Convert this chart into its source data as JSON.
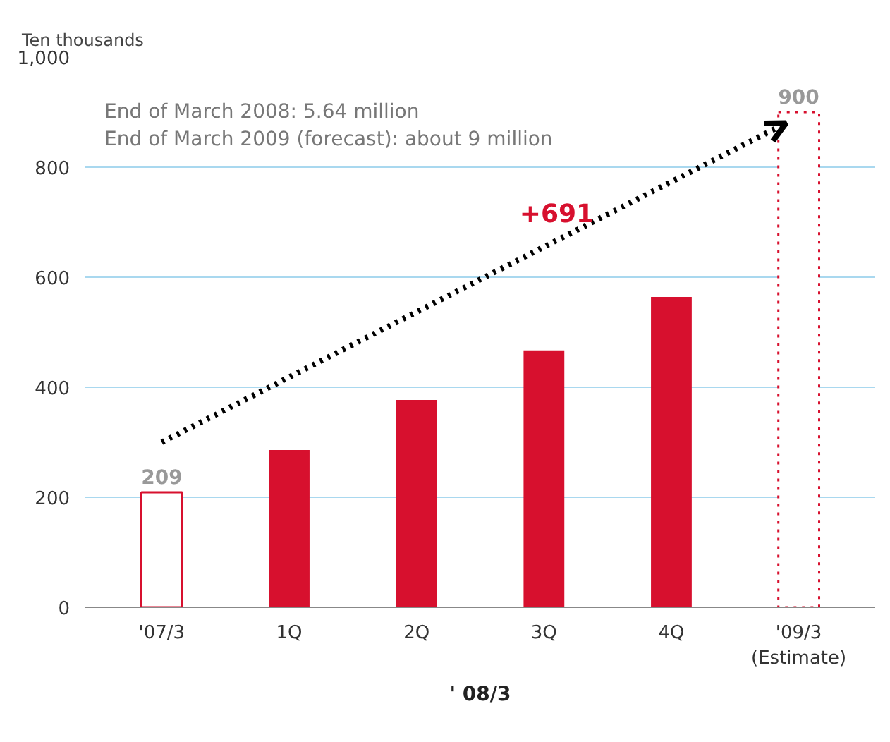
{
  "chart_data": {
    "type": "bar",
    "ylabel": "Ten thousands",
    "categories": [
      "'07/3",
      "1Q",
      "2Q",
      "3Q",
      "4Q",
      "'09/3\n(Estimate)"
    ],
    "series": [
      {
        "color": "#d7102e",
        "values": [
          209,
          null,
          null,
          null,
          null,
          null
        ],
        "line_style": "solid",
        "value_labels": [
          "209",
          null,
          null,
          null,
          null,
          null
        ]
      },
      {
        "color": "#d7102e",
        "values": [
          null,
          286,
          377,
          467,
          564,
          null
        ]
      },
      {
        "color": "#d7102e",
        "values": [
          null,
          null,
          null,
          null,
          null,
          900
        ],
        "line_style": "dotted",
        "value_labels": [
          null,
          null,
          null,
          null,
          null,
          "900"
        ]
      }
    ],
    "ylim": [
      0,
      1000
    ],
    "yticks": [
      0,
      200,
      400,
      600,
      800,
      {
        "value": 1000,
        "label": "1,000"
      }
    ],
    "grid": "y",
    "annotations": [
      "End of March 2008: 5.64 million",
      "End of March 2009 (forecast): about 9 million",
      "+691",
      "' 08/3"
    ]
  }
}
